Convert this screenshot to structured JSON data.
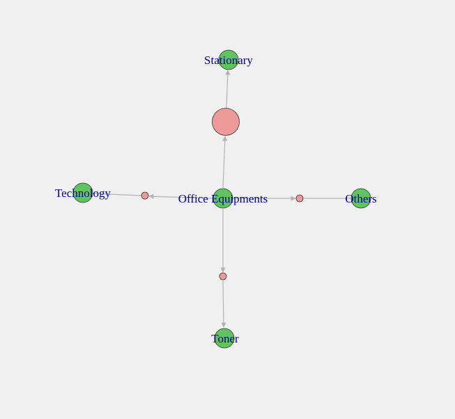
{
  "background": "#f0f0f0",
  "colors": {
    "category_node": "#5fc45f",
    "link_node": "#ef9a9a",
    "edge": "#b3b3b3",
    "label": "#00008b"
  },
  "nodes": {
    "center": {
      "label": "Office Equipments"
    },
    "stationary": {
      "label": "Stationary"
    },
    "technology": {
      "label": "Technology"
    },
    "others": {
      "label": "Others"
    },
    "toner": {
      "label": "Toner"
    }
  }
}
